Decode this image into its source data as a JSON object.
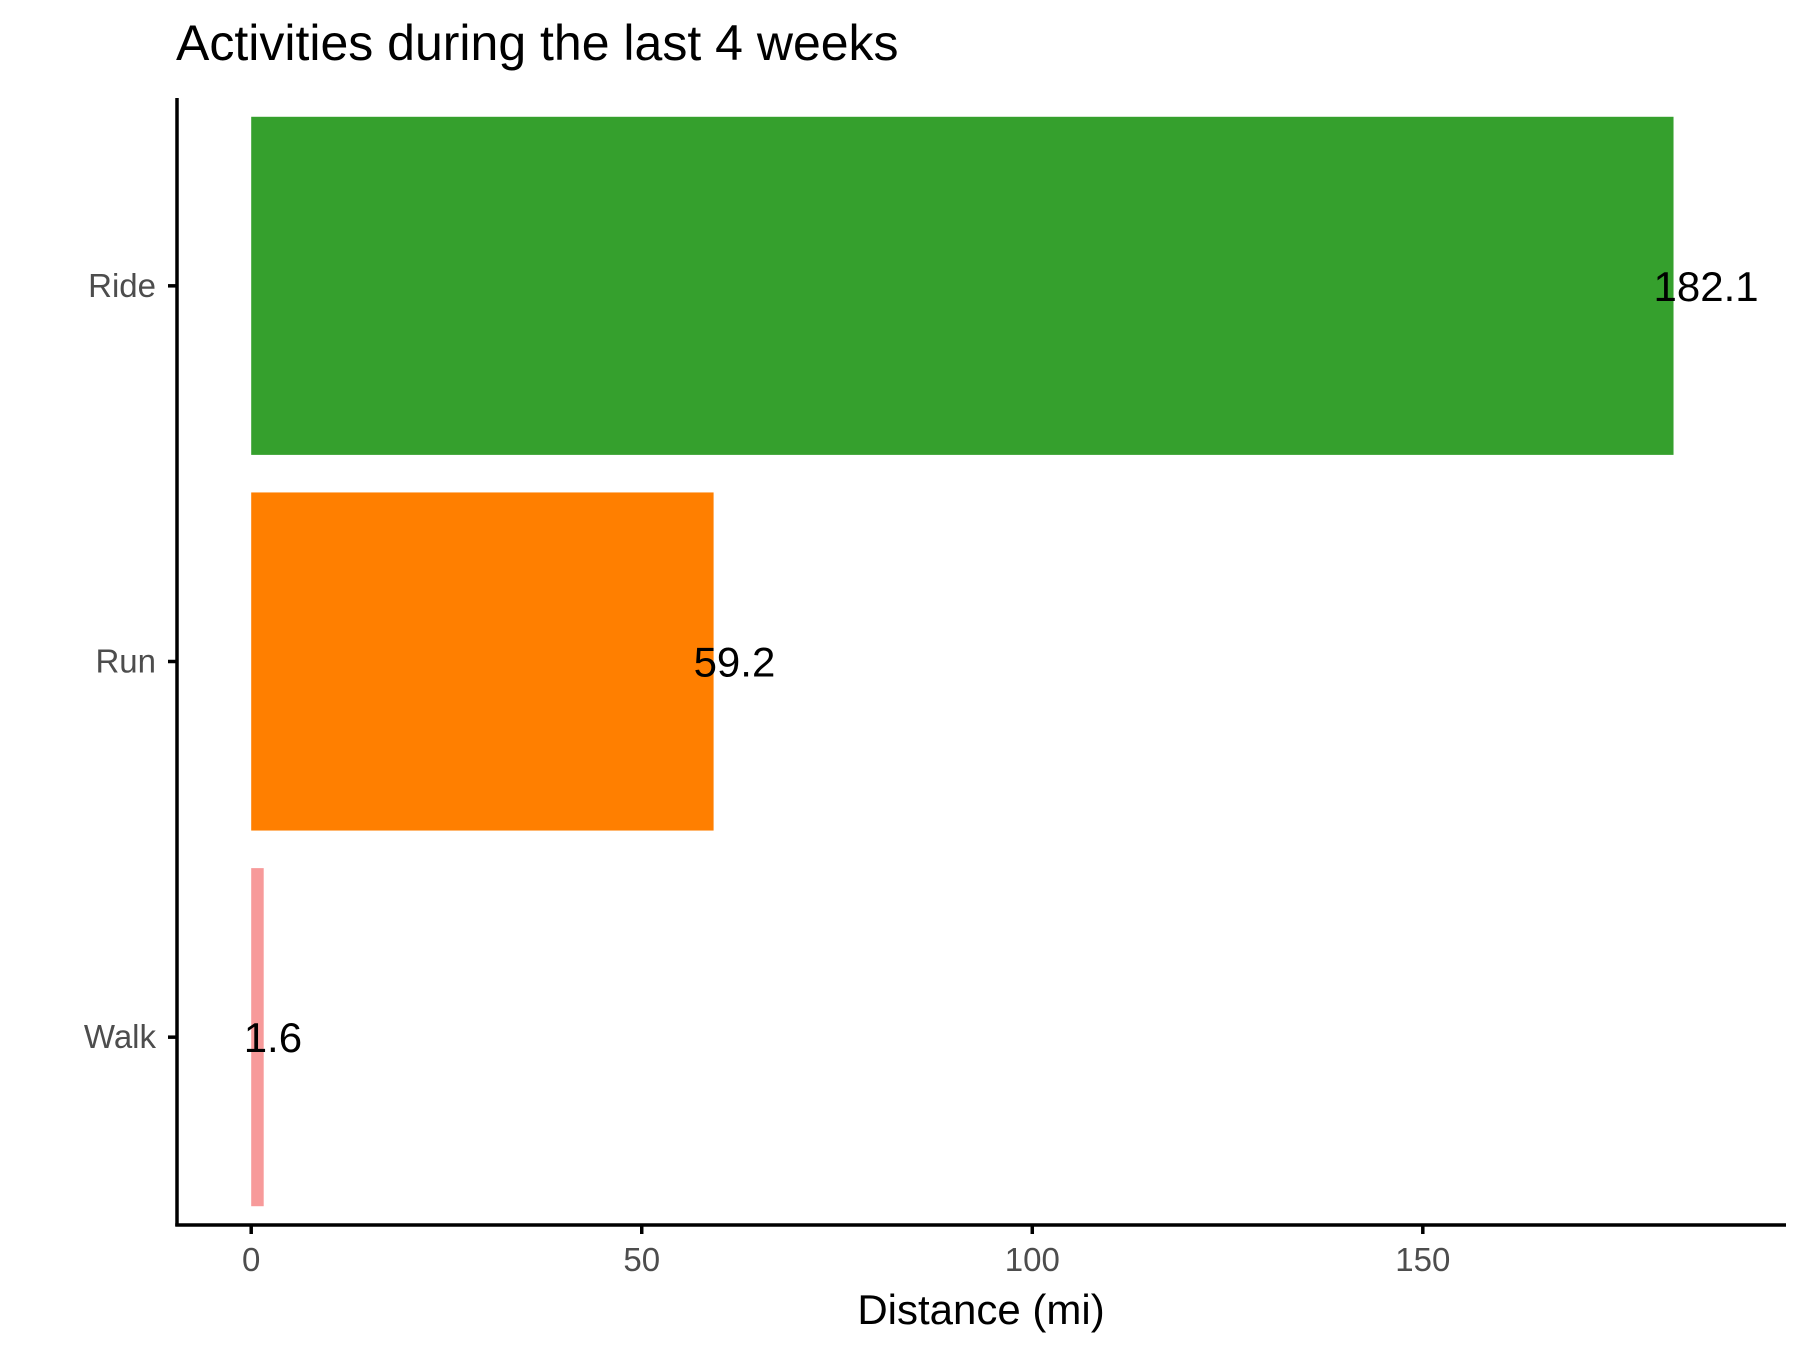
{
  "chart_data": {
    "type": "bar",
    "orientation": "horizontal",
    "title": "Activities during the last 4 weeks",
    "xlabel": "Distance (mi)",
    "ylabel": "",
    "categories": [
      "Ride",
      "Run",
      "Walk"
    ],
    "values": [
      182.1,
      59.2,
      1.6
    ],
    "value_labels": [
      "182.1",
      "59.2",
      "1.6"
    ],
    "colors": [
      "#35a02d",
      "#ff7f00",
      "#f79a9a"
    ],
    "xlim": [
      -9.5,
      196.5
    ],
    "xticks": [
      0,
      50,
      100,
      150
    ],
    "xtick_labels": [
      "0",
      "50",
      "100",
      "150"
    ],
    "grid": false,
    "legend": "none"
  }
}
